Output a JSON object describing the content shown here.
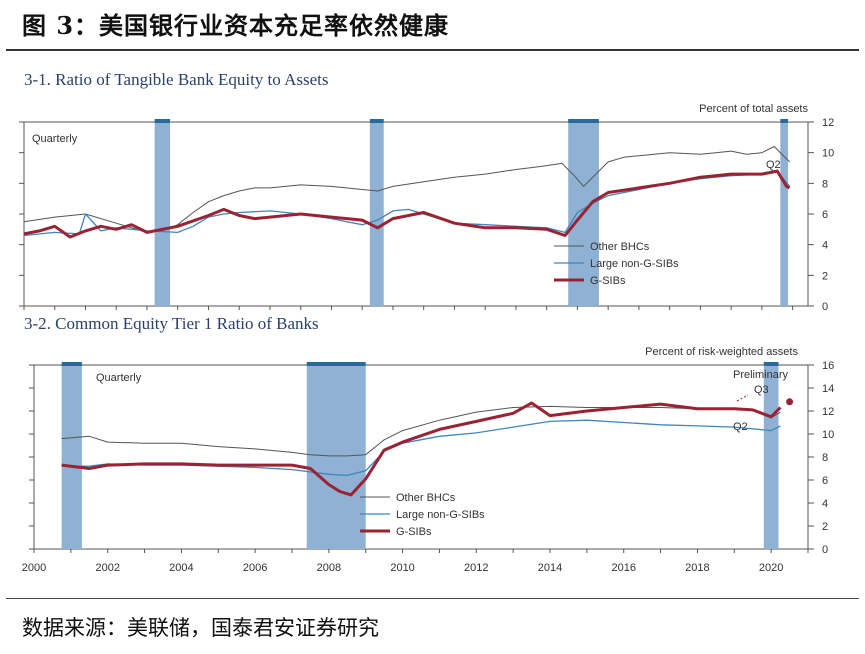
{
  "header": {
    "title": "图 3：美国银行业资本充足率依然健康"
  },
  "footer": {
    "source": "数据来源：美联储，国泰君安证券研究"
  },
  "colors": {
    "other": "#555555",
    "large": "#3f86bd",
    "gsib": "#9b2233",
    "recession": "#8fb1d3",
    "recession_cap": "#2a6a99"
  },
  "chart_data": [
    {
      "type": "line",
      "title": "3-1. Ratio of Tangible Bank Equity to Assets",
      "ylabel": "Percent of total assets",
      "frequency_label": "Quarterly",
      "annotations": [
        "Q2"
      ],
      "ylim": [
        0,
        12
      ],
      "yticks": [
        0,
        2,
        4,
        6,
        8,
        10,
        12
      ],
      "xlim": [
        1996.0,
        2021.5
      ],
      "legend": [
        "Other BHCs",
        "Large non-G-SIBs",
        "G-SIBs"
      ],
      "legend_position": "bottom-right",
      "shaded_periods": [
        [
          2000.25,
          2000.75
        ],
        [
          2007.25,
          2007.7
        ],
        [
          2013.7,
          2014.7
        ],
        [
          2020.6,
          2020.85
        ]
      ],
      "series": [
        {
          "name": "Other BHCs",
          "x": [
            1996.0,
            1997.0,
            1998.0,
            1999.0,
            2000.0,
            2000.5,
            2001.0,
            2001.5,
            2002.0,
            2002.5,
            2003.0,
            2003.5,
            2004.0,
            2005.0,
            2006.0,
            2007.0,
            2007.5,
            2008.0,
            2009.0,
            2010.0,
            2011.0,
            2012.0,
            2012.8,
            2013.5,
            2013.9,
            2014.2,
            2014.6,
            2015.0,
            2015.5,
            2016.0,
            2017.0,
            2018.0,
            2018.5,
            2019.0,
            2019.5,
            2020.0,
            2020.4,
            2020.9
          ],
          "y": [
            5.5,
            5.8,
            6.0,
            5.4,
            4.8,
            4.9,
            5.3,
            6.1,
            6.8,
            7.2,
            7.5,
            7.7,
            7.7,
            7.9,
            7.8,
            7.6,
            7.5,
            7.8,
            8.1,
            8.4,
            8.6,
            8.9,
            9.1,
            9.3,
            8.5,
            7.8,
            8.6,
            9.4,
            9.7,
            9.8,
            10.0,
            9.9,
            10.0,
            10.1,
            9.9,
            10.0,
            10.4,
            9.4
          ]
        },
        {
          "name": "Large non-G-SIBs",
          "x": [
            1996.0,
            1997.0,
            1997.8,
            1998.0,
            1998.5,
            1999.0,
            2000.0,
            2001.0,
            2001.5,
            2002.0,
            2002.5,
            2003.0,
            2004.0,
            2005.0,
            2006.0,
            2006.5,
            2007.0,
            2007.5,
            2008.0,
            2008.5,
            2009.0,
            2010.0,
            2011.0,
            2012.0,
            2013.0,
            2013.6,
            2014.0,
            2014.5,
            2015.0,
            2016.0,
            2017.0,
            2018.0,
            2019.0,
            2020.0,
            2020.5,
            2020.9
          ],
          "y": [
            4.6,
            4.8,
            4.7,
            6.0,
            4.9,
            5.1,
            4.9,
            4.8,
            5.2,
            5.8,
            6.0,
            6.1,
            6.2,
            6.0,
            5.7,
            5.5,
            5.3,
            5.6,
            6.2,
            6.3,
            6.0,
            5.4,
            5.3,
            5.2,
            5.1,
            4.8,
            6.1,
            6.7,
            7.2,
            7.6,
            8.0,
            8.3,
            8.5,
            8.6,
            8.8,
            7.8
          ]
        },
        {
          "name": "G-SIBs",
          "x": [
            1996.0,
            1996.5,
            1997.0,
            1997.5,
            1998.0,
            1998.5,
            1999.0,
            1999.5,
            2000.0,
            2001.0,
            2002.0,
            2002.5,
            2003.0,
            2003.5,
            2004.0,
            2005.0,
            2006.0,
            2007.0,
            2007.5,
            2008.0,
            2009.0,
            2010.0,
            2011.0,
            2012.0,
            2013.0,
            2013.6,
            2014.0,
            2014.5,
            2015.0,
            2016.0,
            2017.0,
            2018.0,
            2019.0,
            2020.0,
            2020.5,
            2020.8,
            2020.9
          ],
          "y": [
            4.7,
            4.9,
            5.2,
            4.5,
            4.9,
            5.2,
            5.0,
            5.3,
            4.8,
            5.2,
            5.9,
            6.3,
            5.9,
            5.7,
            5.8,
            6.0,
            5.8,
            5.6,
            5.1,
            5.7,
            6.1,
            5.4,
            5.1,
            5.1,
            5.0,
            4.6,
            5.6,
            6.8,
            7.4,
            7.7,
            8.0,
            8.4,
            8.6,
            8.6,
            8.8,
            7.8,
            7.7
          ]
        }
      ]
    },
    {
      "type": "line",
      "title": "3-2. Common Equity Tier 1 Ratio of Banks",
      "ylabel": "Percent of risk-weighted assets",
      "frequency_label": "Quarterly",
      "annotations": [
        "Preliminary",
        "Q3",
        "Q2"
      ],
      "ylim": [
        0,
        16
      ],
      "yticks": [
        0,
        2,
        4,
        6,
        8,
        10,
        12,
        14,
        16
      ],
      "xlim": [
        2000.0,
        2021.0
      ],
      "xticks": [
        2000,
        2002,
        2004,
        2006,
        2008,
        2010,
        2012,
        2014,
        2016,
        2018,
        2020
      ],
      "legend": [
        "Other BHCs",
        "Large non-G-SIBs",
        "G-SIBs"
      ],
      "legend_position": "bottom-center",
      "shaded_periods": [
        [
          2000.75,
          2001.3
        ],
        [
          2007.4,
          2009.0
        ],
        [
          2019.8,
          2020.2
        ]
      ],
      "series": [
        {
          "name": "Other BHCs",
          "x": [
            2000.75,
            2001.5,
            2002.0,
            2003.0,
            2004.0,
            2005.0,
            2006.0,
            2007.0,
            2007.5,
            2008.0,
            2008.5,
            2009.0,
            2009.5,
            2010.0,
            2011.0,
            2012.0,
            2013.0,
            2014.0,
            2015.0,
            2016.0,
            2017.0,
            2018.0,
            2019.0,
            2019.5,
            2020.0,
            2020.25
          ],
          "y": [
            9.6,
            9.8,
            9.3,
            9.2,
            9.2,
            8.9,
            8.7,
            8.4,
            8.2,
            8.1,
            8.1,
            8.2,
            9.5,
            10.3,
            11.2,
            11.9,
            12.3,
            12.4,
            12.3,
            12.3,
            12.3,
            12.2,
            12.2,
            12.1,
            11.4,
            11.9
          ]
        },
        {
          "name": "Large non-G-SIBs",
          "x": [
            2000.75,
            2001.5,
            2002.0,
            2003.0,
            2004.0,
            2005.0,
            2006.0,
            2007.0,
            2007.5,
            2008.0,
            2008.5,
            2009.0,
            2009.5,
            2010.0,
            2011.0,
            2012.0,
            2013.0,
            2014.0,
            2015.0,
            2016.0,
            2017.0,
            2018.0,
            2019.0,
            2020.0,
            2020.25
          ],
          "y": [
            7.2,
            7.2,
            7.4,
            7.3,
            7.3,
            7.2,
            7.1,
            6.9,
            6.7,
            6.5,
            6.4,
            6.8,
            8.5,
            9.2,
            9.8,
            10.1,
            10.6,
            11.1,
            11.2,
            11.0,
            10.8,
            10.7,
            10.6,
            10.3,
            10.7
          ]
        },
        {
          "name": "G-SIBs",
          "x": [
            2000.75,
            2001.0,
            2001.5,
            2002.0,
            2003.0,
            2004.0,
            2005.0,
            2006.0,
            2007.0,
            2007.5,
            2008.0,
            2008.3,
            2008.6,
            2009.0,
            2009.5,
            2010.0,
            2011.0,
            2012.0,
            2013.0,
            2013.5,
            2014.0,
            2015.0,
            2016.0,
            2017.0,
            2018.0,
            2019.0,
            2019.5,
            2020.0,
            2020.25
          ],
          "y": [
            7.3,
            7.2,
            7.0,
            7.3,
            7.4,
            7.4,
            7.3,
            7.3,
            7.3,
            7.0,
            5.6,
            5.0,
            4.7,
            6.1,
            8.6,
            9.3,
            10.4,
            11.1,
            11.8,
            12.7,
            11.6,
            12.0,
            12.3,
            12.6,
            12.2,
            12.2,
            12.1,
            11.5,
            12.3
          ]
        },
        {
          "name": "G-SIBs preliminary Q3",
          "x": [
            2020.5
          ],
          "y": [
            12.8
          ]
        }
      ]
    }
  ]
}
